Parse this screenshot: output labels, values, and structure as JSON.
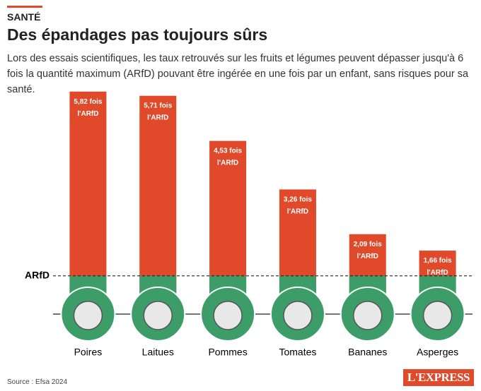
{
  "chart_data": {
    "type": "bar",
    "kicker": "SANTÉ",
    "title": "Des épandages pas toujours sûrs",
    "subtitle": "Lors des essais scientifiques, les taux retrouvés sur les fruits et légumes peuvent dépasser jusqu'à 6 fois la quantité maximum (ARfD) pouvant être ingérée en une fois par un enfant, sans risques pour sa santé.",
    "categories": [
      "Poires",
      "Laitues",
      "Pommes",
      "Tomates",
      "Bananes",
      "Asperges"
    ],
    "values": [
      5.82,
      5.71,
      4.53,
      3.26,
      2.09,
      1.66
    ],
    "value_labels": [
      "5,82 fois l'ARfD",
      "5,71 fois l'ARfD",
      "4,53 fois l'ARfD",
      "3,26 fois l'ARfD",
      "2,09 fois l'ARfD",
      "1,66 fois l'ARfD"
    ],
    "color": "#e04a2b",
    "below_color": "#3d9d69",
    "reference_line": {
      "value": 1,
      "label": "ARfD"
    },
    "ylim": [
      0,
      6
    ],
    "source": "Source : Efsa 2024",
    "logo": "L'EXPRESS"
  }
}
